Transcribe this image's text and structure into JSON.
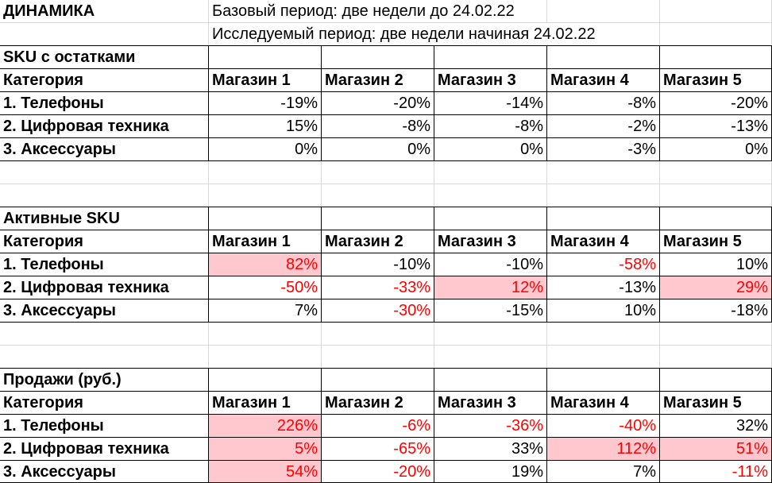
{
  "title": "ДИНАМИКА",
  "base_period": "Базовый период: две недели до 24.02.22",
  "study_period": "Исследуемый период: две недели начиная 24.02.22",
  "sections": [
    {
      "title": "SKU с остатками",
      "header": [
        "Категория",
        "Магазин 1",
        "Магазин 2",
        "Магазин 3",
        "Магазин 4",
        "Магазин 5"
      ],
      "rows": [
        [
          "1. Телефоны",
          "-19%",
          "-20%",
          "-14%",
          "-8%",
          "-20%"
        ],
        [
          "2. Цифровая техника",
          "15%",
          "-8%",
          "-8%",
          "-2%",
          "-13%"
        ],
        [
          "3. Аксессуары",
          "0%",
          "0%",
          "0%",
          "-3%",
          "0%"
        ]
      ]
    },
    {
      "title": "Активные SKU",
      "header": [
        "Категория",
        "Магазин 1",
        "Магазин 2",
        "Магазин 3",
        "Магазин 4",
        "Магазин 5"
      ],
      "rows": [
        [
          "1. Телефоны",
          {
            "text": "82%",
            "color": "#ff0000",
            "fill": "#ffc7ce"
          },
          "-10%",
          "-10%",
          {
            "text": "-58%",
            "color": "#ff0000"
          },
          "10%"
        ],
        [
          "2. Цифровая техника",
          {
            "text": "-50%",
            "color": "#ff0000"
          },
          {
            "text": "-33%",
            "color": "#ff0000"
          },
          {
            "text": "12%",
            "color": "#ff0000",
            "fill": "#ffc7ce"
          },
          "-13%",
          {
            "text": "29%",
            "color": "#ff0000",
            "fill": "#ffc7ce"
          }
        ],
        [
          "3. Аксессуары",
          "7%",
          {
            "text": "-30%",
            "color": "#ff0000"
          },
          "-15%",
          "10%",
          "-18%"
        ]
      ]
    },
    {
      "title": "Продажи (руб.)",
      "header": [
        "Категория",
        "Магазин 1",
        "Магазин 2",
        "Магазин 3",
        "Магазин 4",
        "Магазин 5"
      ],
      "rows": [
        [
          "1. Телефоны",
          {
            "text": "226%",
            "color": "#ff0000",
            "fill": "#ffc7ce"
          },
          {
            "text": "-6%",
            "color": "#ff0000"
          },
          {
            "text": "-36%",
            "color": "#ff0000"
          },
          {
            "text": "-40%",
            "color": "#ff0000"
          },
          "32%"
        ],
        [
          "2. Цифровая техника",
          {
            "text": "5%",
            "color": "#ff0000",
            "fill": "#ffc7ce"
          },
          {
            "text": "-65%",
            "color": "#ff0000"
          },
          "33%",
          {
            "text": "112%",
            "color": "#ff0000",
            "fill": "#ffc7ce"
          },
          {
            "text": "51%",
            "color": "#ff0000",
            "fill": "#ffc7ce"
          }
        ],
        [
          "3. Аксессуары",
          {
            "text": "54%",
            "color": "#ff0000",
            "fill": "#ffc7ce"
          },
          {
            "text": "-20%",
            "color": "#ff0000"
          },
          "19%",
          "7%",
          {
            "text": "-11%",
            "color": "#ff0000"
          }
        ]
      ]
    }
  ]
}
